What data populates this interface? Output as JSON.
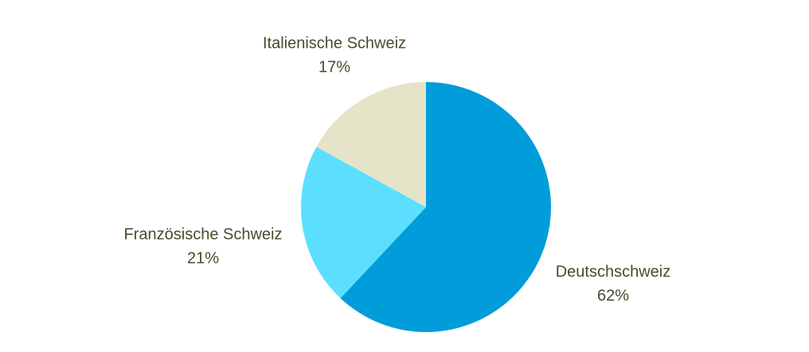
{
  "chart_data": {
    "type": "pie",
    "categories": [
      "Deutschschweiz",
      "Französische Schweiz",
      "Italienische Schweiz"
    ],
    "values": [
      62,
      21,
      17
    ],
    "value_labels": [
      "62%",
      "21%",
      "17%"
    ],
    "colors": [
      "#019dda",
      "#5cdfff",
      "#e6e4c8"
    ]
  }
}
